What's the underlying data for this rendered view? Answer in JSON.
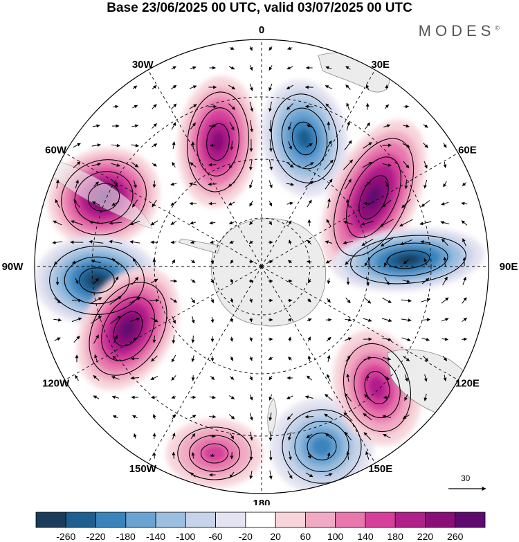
{
  "title": "Base 23/06/2025 00 UTC, valid 03/07/2025 00 UTC",
  "brand": "MODES",
  "brand_mark": "©",
  "map": {
    "projection": "south polar stereographic",
    "meridian_labels": [
      {
        "name": "lon-0",
        "text": "0"
      },
      {
        "name": "lon-30e",
        "text": "30E"
      },
      {
        "name": "lon-60e",
        "text": "60E"
      },
      {
        "name": "lon-90e",
        "text": "90E"
      },
      {
        "name": "lon-120e",
        "text": "120E"
      },
      {
        "name": "lon-150e",
        "text": "150E"
      },
      {
        "name": "lon-180",
        "text": "180"
      },
      {
        "name": "lon-150w",
        "text": "150W"
      },
      {
        "name": "lon-120w",
        "text": "120W"
      },
      {
        "name": "lon-90w",
        "text": "90W"
      },
      {
        "name": "lon-60w",
        "text": "60W"
      },
      {
        "name": "lon-30w",
        "text": "30W"
      }
    ],
    "anomaly_centers": [
      {
        "name": "anomaly-high-60w",
        "value": 240
      },
      {
        "name": "anomaly-high-10w",
        "value": 200
      },
      {
        "name": "anomaly-low-15e",
        "value": -200
      },
      {
        "name": "anomaly-high-45e",
        "value": 260
      },
      {
        "name": "anomaly-low-90e",
        "value": -260
      },
      {
        "name": "anomaly-low-95w",
        "value": -260
      },
      {
        "name": "anomaly-high-115w",
        "value": 240
      },
      {
        "name": "anomaly-low-140e",
        "value": -180
      },
      {
        "name": "anomaly-high-120e",
        "value": 160
      },
      {
        "name": "anomaly-high-170w",
        "value": 120
      }
    ]
  },
  "reference_vector": {
    "label": "30"
  },
  "colorbar": {
    "ticks": [
      "-260",
      "-220",
      "-180",
      "-140",
      "-100",
      "-60",
      "-20",
      "20",
      "60",
      "100",
      "140",
      "180",
      "220",
      "260"
    ],
    "colors": [
      "#1b3b5a",
      "#1f5f8f",
      "#3a84bd",
      "#6aa3d1",
      "#9cbfe0",
      "#c7d3e8",
      "#e4e3f1",
      "#ffffff",
      "#f7d5db",
      "#f1aac3",
      "#e777ad",
      "#d6409a",
      "#b01f8a",
      "#8a0f78",
      "#5e0a6e"
    ]
  }
}
